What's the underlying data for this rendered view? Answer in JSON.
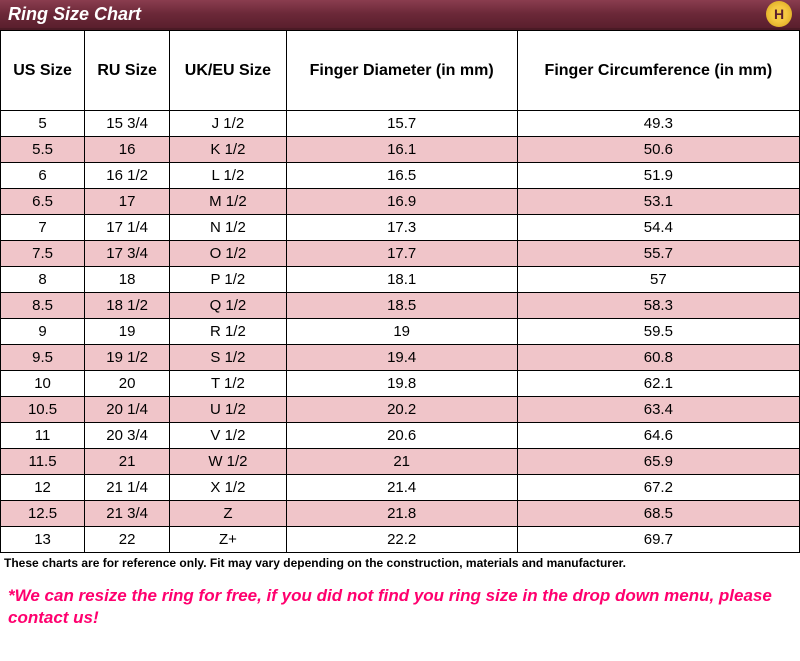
{
  "title": "Ring Size Chart",
  "logoLetter": "H",
  "styling": {
    "titlebar_gradient_top": "#8a3d4f",
    "titlebar_gradient_bottom": "#5a1f2d",
    "title_color": "#ffffff",
    "odd_row_bg": "#ffffff",
    "even_row_bg": "#f0c5c9",
    "border_color": "#000000",
    "disclaimer_color": "#000000",
    "note_color": "#ff006e",
    "header_fontsize": 16,
    "cell_fontsize": 15,
    "disclaimer_fontsize": 12,
    "note_fontsize": 17,
    "logo_bg": "#f5c842"
  },
  "columns": [
    "US Size",
    "RU Size",
    "UK/EU Size",
    "Finger Diameter (in mm)",
    "Finger Circumference (in mm)"
  ],
  "rows": [
    [
      "5",
      "15 3/4",
      "J 1/2",
      "15.7",
      "49.3"
    ],
    [
      "5.5",
      "16",
      "K 1/2",
      "16.1",
      "50.6"
    ],
    [
      "6",
      "16 1/2",
      "L 1/2",
      "16.5",
      "51.9"
    ],
    [
      "6.5",
      "17",
      "M 1/2",
      "16.9",
      "53.1"
    ],
    [
      "7",
      "17 1/4",
      "N 1/2",
      "17.3",
      "54.4"
    ],
    [
      "7.5",
      "17 3/4",
      "O 1/2",
      "17.7",
      "55.7"
    ],
    [
      "8",
      "18",
      "P 1/2",
      "18.1",
      "57"
    ],
    [
      "8.5",
      "18 1/2",
      "Q 1/2",
      "18.5",
      "58.3"
    ],
    [
      "9",
      "19",
      "R 1/2",
      "19",
      "59.5"
    ],
    [
      "9.5",
      "19 1/2",
      "S 1/2",
      "19.4",
      "60.8"
    ],
    [
      "10",
      "20",
      "T 1/2",
      "19.8",
      "62.1"
    ],
    [
      "10.5",
      "20 1/4",
      "U 1/2",
      "20.2",
      "63.4"
    ],
    [
      "11",
      "20 3/4",
      "V 1/2",
      "20.6",
      "64.6"
    ],
    [
      "11.5",
      "21",
      "W 1/2",
      "21",
      "65.9"
    ],
    [
      "12",
      "21 1/4",
      "X 1/2",
      "21.4",
      "67.2"
    ],
    [
      "12.5",
      "21 3/4",
      "Z",
      "21.8",
      "68.5"
    ],
    [
      "13",
      "22",
      "Z+",
      "22.2",
      "69.7"
    ]
  ],
  "disclaimer": "These charts are for reference only. Fit may vary depending on the construction, materials and manufacturer.",
  "note": "*We can resize the ring for free, if you did not find you ring size in the drop down menu, please contact us!"
}
